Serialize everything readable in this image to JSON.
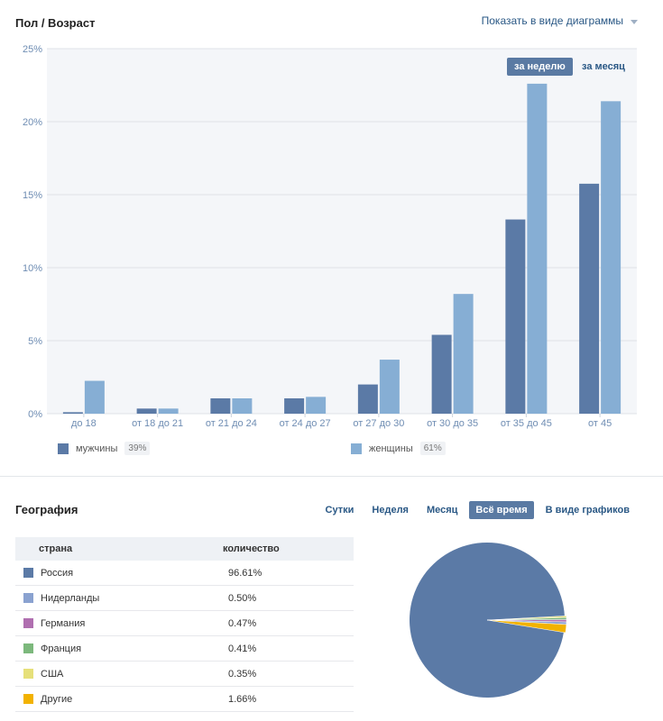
{
  "age_section": {
    "title": "Пол / Возраст",
    "toggle_label": "Показать в виде диаграммы",
    "period_week": "за неделю",
    "period_month": "за месяц",
    "legend_male_label": "мужчины",
    "legend_male_pct": "39%",
    "legend_female_label": "женщины",
    "legend_female_pct": "61%"
  },
  "geo_section": {
    "title": "География",
    "tabs": [
      "Сутки",
      "Неделя",
      "Месяц",
      "Всё время",
      "В виде графиков"
    ],
    "col_country": "страна",
    "col_count": "количество",
    "rows": [
      {
        "country": "Россия",
        "value": "96.61%",
        "color": "#5b7aa6"
      },
      {
        "country": "Нидерланды",
        "value": "0.50%",
        "color": "#8aa2d0"
      },
      {
        "country": "Германия",
        "value": "0.47%",
        "color": "#b06fb0"
      },
      {
        "country": "Франция",
        "value": "0.41%",
        "color": "#7cb87c"
      },
      {
        "country": "США",
        "value": "0.35%",
        "color": "#e6e07a"
      },
      {
        "country": "Другие",
        "value": "1.66%",
        "color": "#f2b200"
      }
    ]
  },
  "chart_data": [
    {
      "type": "bar",
      "categories": [
        "до 18",
        "от 18 до 21",
        "от 21 до 24",
        "от 24 до 27",
        "от 27 до 30",
        "от 30 до 35",
        "от 35 до 45",
        "от 45"
      ],
      "series": [
        {
          "name": "мужчины",
          "values": [
            0.1,
            0.35,
            1.05,
            1.05,
            2.0,
            5.4,
            13.3,
            15.75
          ],
          "color": "#5b7aa6"
        },
        {
          "name": "женщины",
          "values": [
            2.25,
            0.35,
            1.05,
            1.15,
            3.7,
            8.2,
            22.6,
            21.4
          ],
          "color": "#86aed4"
        }
      ],
      "yticks": [
        "0%",
        "5%",
        "10%",
        "15%",
        "20%",
        "25%"
      ],
      "ylim": [
        0,
        25
      ],
      "grid": true
    },
    {
      "type": "pie",
      "labels": [
        "Россия",
        "Нидерланды",
        "Германия",
        "Франция",
        "США",
        "Другие"
      ],
      "values": [
        96.61,
        0.5,
        0.47,
        0.41,
        0.35,
        1.66
      ],
      "colors": [
        "#5b7aa6",
        "#8aa2d0",
        "#b06fb0",
        "#7cb87c",
        "#e6e07a",
        "#f2b200"
      ]
    }
  ]
}
